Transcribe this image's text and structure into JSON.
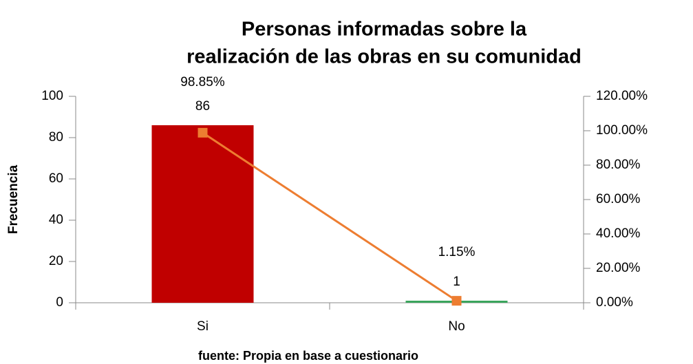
{
  "chart_data": {
    "type": "bar_line",
    "title": [
      "Personas informadas sobre la",
      "realización de las obras en su comunidad"
    ],
    "y_label": "Frecuencia",
    "footer": "fuente: Propia en base a cuestionario",
    "categories": [
      "Si",
      "No"
    ],
    "series": [
      {
        "type": "bar",
        "colors": [
          "#c00000",
          "#3aa55d"
        ],
        "values": [
          86,
          1
        ]
      },
      {
        "type": "line",
        "axis": "y2",
        "color": "#ed7d31",
        "values": [
          98.85,
          1.15
        ],
        "value_labels": [
          "98.85%",
          "1.15%"
        ]
      }
    ],
    "ylim": [
      0,
      100
    ],
    "yticks": [
      0,
      20,
      40,
      60,
      80,
      100
    ],
    "y2lim": [
      0,
      120
    ],
    "y2ticks": [
      {
        "value": 0,
        "label": "0.00%"
      },
      {
        "value": 20,
        "label": "20.00%"
      },
      {
        "value": 40,
        "label": "40.00%"
      },
      {
        "value": 60,
        "label": "60.00%"
      },
      {
        "value": 80,
        "label": "80.00%"
      },
      {
        "value": 100,
        "label": "100.00%"
      },
      {
        "value": 120,
        "label": "120.00%"
      }
    ]
  }
}
